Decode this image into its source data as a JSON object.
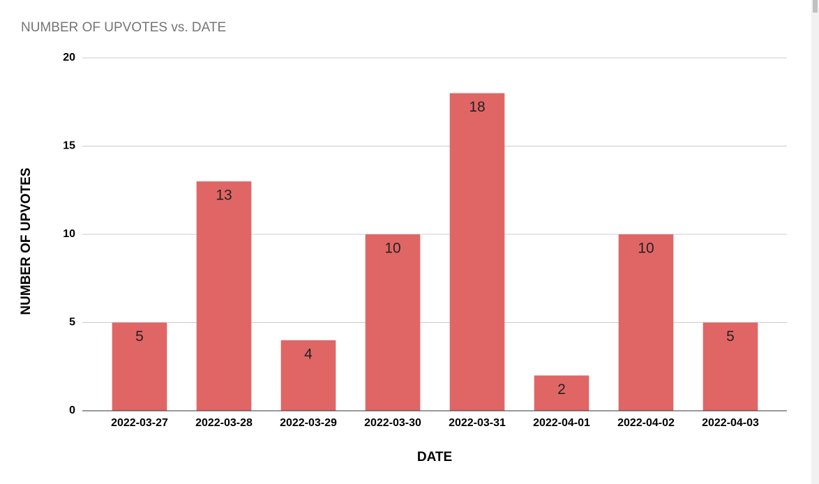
{
  "chart_data": {
    "type": "bar",
    "title": "NUMBER OF UPVOTES vs. DATE",
    "x_label": "DATE",
    "y_label": "NUMBER OF UPVOTES",
    "categories": [
      "2022-03-27",
      "2022-03-28",
      "2022-03-29",
      "2022-03-30",
      "2022-03-31",
      "2022-04-01",
      "2022-04-02",
      "2022-04-03"
    ],
    "values": [
      5,
      13,
      4,
      10,
      18,
      2,
      10,
      5
    ],
    "color": "#e06666",
    "ylim": [
      0,
      20
    ],
    "yticks": [
      0,
      5,
      10,
      15,
      20
    ],
    "grid": true
  }
}
